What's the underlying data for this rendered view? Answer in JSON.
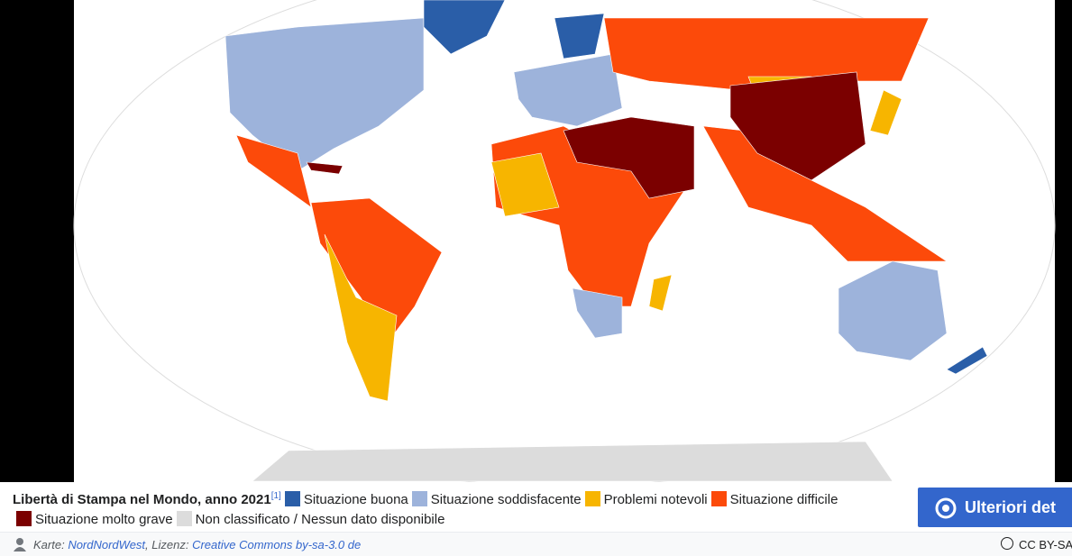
{
  "caption": {
    "title": "Libertà di Stampa nel Mondo, anno 2021",
    "ref": "[1]",
    "legend": [
      {
        "label": "Situazione buona",
        "color": "#2a5ea8"
      },
      {
        "label": "Situazione soddisfacente",
        "color": "#9db3db"
      },
      {
        "label": "Problemi notevoli",
        "color": "#f7b500"
      },
      {
        "label": "Situazione difficile",
        "color": "#fc4a0a"
      },
      {
        "label": "Situazione molto grave",
        "color": "#7b0000"
      },
      {
        "label": "Non classificato / Nessun dato disponibile",
        "color": "#dcdcdc"
      }
    ]
  },
  "button": "Ulteriori det",
  "credit": {
    "prefix": "Karte:",
    "author": "NordNordWest",
    "mid": ", Lizenz:",
    "license": "Creative Commons by-sa-3.0 de"
  },
  "badge": "CC BY-SA"
}
